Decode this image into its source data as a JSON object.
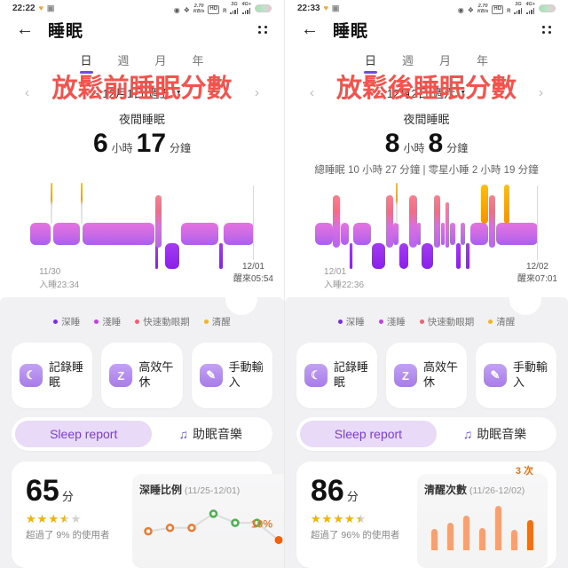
{
  "shared": {
    "header": {
      "title": "睡眠"
    },
    "tabs": {
      "items": [
        "日",
        "週",
        "月",
        "年"
      ],
      "selected": 0
    },
    "legend": [
      {
        "label": "深睡",
        "color": "#7b2bea"
      },
      {
        "label": "淺睡",
        "color": "#c43ee0"
      },
      {
        "label": "快速動眼期",
        "color": "#ef5f75"
      },
      {
        "label": "清醒",
        "color": "#f0b429"
      }
    ],
    "actions": [
      {
        "icon": "moon-icon",
        "glyph": "☾",
        "label": "記錄睡眠"
      },
      {
        "icon": "nap-icon",
        "glyph": "Z",
        "label": "高效午休"
      },
      {
        "icon": "edit-icon",
        "glyph": "✎",
        "label": "手動輸入"
      }
    ],
    "report": {
      "sleep_report": "Sleep report",
      "music_label": "助眠音樂",
      "music_icon": "♫"
    },
    "status_icons": {
      "net_speed": "2.70",
      "net_unit": "KB/s",
      "hd": "HD",
      "r": "R",
      "sim1": "3G",
      "sim2": "4G+"
    }
  },
  "panels": [
    {
      "status": {
        "time": "22:22"
      },
      "overlay": "放鬆前睡眠分數",
      "date": "12月1日 週五",
      "night_label": "夜間睡眠",
      "duration": {
        "h": "6",
        "h_unit": "小時",
        "m": "17",
        "m_unit": "分鐘"
      },
      "subtitle": "",
      "sleep_chart": {
        "start_date": "11/30",
        "start_label": "入睡23:34",
        "end_date": "12/01",
        "end_label": "醒來05:54",
        "segments": [
          {
            "t": "light",
            "x": 0,
            "w": 9
          },
          {
            "t": "awake_thin",
            "x": 9.2,
            "w": 0.8
          },
          {
            "t": "light",
            "x": 10.3,
            "w": 11.9
          },
          {
            "t": "awake_thin",
            "x": 22.5,
            "w": 0.8
          },
          {
            "t": "light",
            "x": 23.6,
            "w": 31.9
          },
          {
            "t": "deep_thin",
            "x": 55.9,
            "w": 1.3
          },
          {
            "t": "rem",
            "x": 56.0,
            "w": 2.9
          },
          {
            "t": "deep",
            "x": 60.3,
            "w": 6.4
          },
          {
            "t": "light",
            "x": 67.6,
            "w": 16.6
          },
          {
            "t": "deep_thin",
            "x": 84.6,
            "w": 1.5
          },
          {
            "t": "light",
            "x": 86.6,
            "w": 13.4
          }
        ]
      },
      "score": {
        "value": "65",
        "unit": "分",
        "stars": 3.5,
        "note": "超過了 9% 的使用者"
      },
      "mini_chart": {
        "type": "line",
        "title": "深睡比例",
        "range": "(11/25-12/01)",
        "points": [
          {
            "v": 0.3,
            "c": "orange"
          },
          {
            "v": 0.4,
            "c": "orange"
          },
          {
            "v": 0.4,
            "c": "orange"
          },
          {
            "v": 0.82,
            "c": "green"
          },
          {
            "v": 0.55,
            "c": "green"
          },
          {
            "v": 0.55,
            "c": "green"
          },
          {
            "v": 0.04,
            "c": "orange_filled"
          }
        ],
        "last_label": "10%"
      }
    },
    {
      "status": {
        "time": "22:33"
      },
      "overlay": "放鬆後睡眠分數",
      "date": "12月2日 週六",
      "night_label": "夜間睡眠",
      "duration": {
        "h": "8",
        "h_unit": "小時",
        "m": "8",
        "m_unit": "分鐘"
      },
      "subtitle": "總睡眠 10 小時 27 分鐘 | 零星小睡 2 小時 19 分鐘",
      "sleep_chart": {
        "start_date": "12/01",
        "start_label": "入睡22:36",
        "end_date": "12/02",
        "end_label": "醒來07:01",
        "segments": [
          {
            "t": "light",
            "x": 0,
            "w": 7.8
          },
          {
            "t": "rem",
            "x": 8.1,
            "w": 3
          },
          {
            "t": "light",
            "x": 11.5,
            "w": 3.6
          },
          {
            "t": "deep_thin",
            "x": 15.4,
            "w": 1.4
          },
          {
            "t": "light",
            "x": 17.1,
            "w": 8
          },
          {
            "t": "deep",
            "x": 25.4,
            "w": 6.2
          },
          {
            "t": "rem",
            "x": 31.9,
            "w": 3
          },
          {
            "t": "light",
            "x": 35.2,
            "w": 2.3
          },
          {
            "t": "awake_thin",
            "x": 36.1,
            "w": 0.8
          },
          {
            "t": "deep",
            "x": 37.8,
            "w": 4.2
          },
          {
            "t": "rem",
            "x": 42.3,
            "w": 3.4
          },
          {
            "t": "light",
            "x": 46,
            "w": 1.6
          },
          {
            "t": "deep",
            "x": 47.9,
            "w": 5
          },
          {
            "t": "rem",
            "x": 53.2,
            "w": 3
          },
          {
            "t": "light",
            "x": 56.5,
            "w": 1.8
          },
          {
            "t": "rem_thin",
            "x": 58.6,
            "w": 1.6
          },
          {
            "t": "light",
            "x": 60.5,
            "w": 2.4
          },
          {
            "t": "deep_thin",
            "x": 63.2,
            "w": 2
          },
          {
            "t": "light",
            "x": 65.5,
            "w": 2
          },
          {
            "t": "deep_thin",
            "x": 67.8,
            "w": 1.7
          },
          {
            "t": "light",
            "x": 69.8,
            "w": 8
          },
          {
            "t": "awake_thick",
            "x": 74.6,
            "w": 3
          },
          {
            "t": "rem",
            "x": 78.2,
            "w": 2.8
          },
          {
            "t": "light",
            "x": 81.4,
            "w": 18.6
          },
          {
            "t": "awake_thick",
            "x": 84.9,
            "w": 2.4
          }
        ]
      },
      "score": {
        "value": "86",
        "unit": "分",
        "stars": 4.5,
        "note": "超過了 96% 的使用者"
      },
      "mini_chart": {
        "type": "bar",
        "title": "清醒次數",
        "range": "(11/26-12/02)",
        "bars": [
          0.38,
          0.55,
          0.75,
          0.4,
          1.0,
          0.35,
          0.62
        ],
        "last_label": "3 次"
      }
    }
  ]
}
